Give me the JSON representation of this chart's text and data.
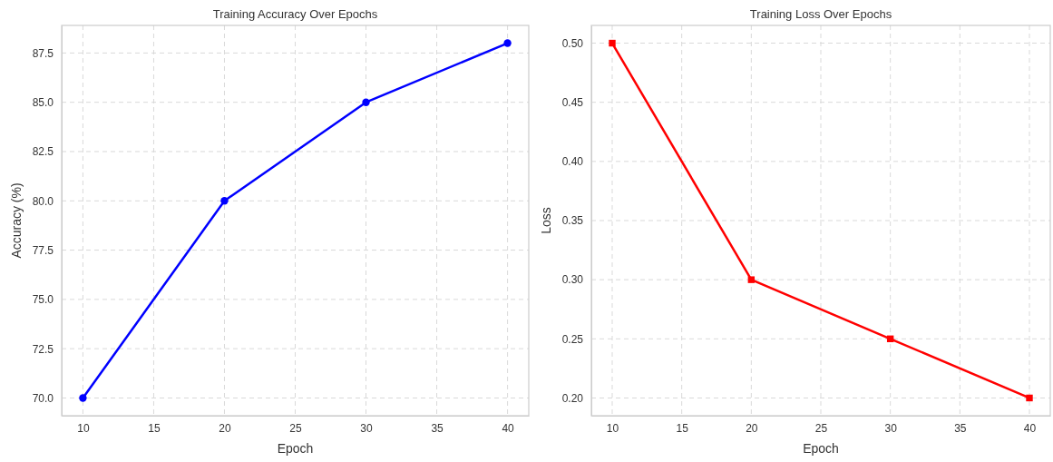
{
  "chart_data": [
    {
      "type": "line",
      "title": "Training Accuracy Over Epochs",
      "xlabel": "Epoch",
      "ylabel": "Accuracy (%)",
      "x": [
        10,
        20,
        30,
        40
      ],
      "series": [
        {
          "color": "#0000ff",
          "values": [
            70,
            80,
            85,
            88
          ]
        }
      ],
      "xlim": [
        8.5,
        41.5
      ],
      "ylim": [
        69.1,
        88.9
      ],
      "xticks": [
        10,
        15,
        20,
        25,
        30,
        35,
        40
      ],
      "yticks": [
        {
          "value": 70,
          "label": "70.0"
        },
        {
          "value": 72.5,
          "label": "72.5"
        },
        {
          "value": 75,
          "label": "75.0"
        },
        {
          "value": 77.5,
          "label": "77.5"
        },
        {
          "value": 80,
          "label": "80.0"
        },
        {
          "value": 82.5,
          "label": "82.5"
        },
        {
          "value": 85,
          "label": "85.0"
        },
        {
          "value": 87.5,
          "label": "87.5"
        }
      ],
      "grid": true,
      "marker": "circle",
      "line_style": "solid"
    },
    {
      "type": "line",
      "title": "Training Loss Over Epochs",
      "xlabel": "Epoch",
      "ylabel": "Loss",
      "x": [
        10,
        20,
        30,
        40
      ],
      "series": [
        {
          "color": "#ff0000",
          "values": [
            0.5,
            0.3,
            0.25,
            0.2
          ]
        }
      ],
      "xlim": [
        8.5,
        41.5
      ],
      "ylim": [
        0.185,
        0.515
      ],
      "xticks": [
        10,
        15,
        20,
        25,
        30,
        35,
        40
      ],
      "yticks": [
        {
          "value": 0.2,
          "label": "0.20"
        },
        {
          "value": 0.25,
          "label": "0.25"
        },
        {
          "value": 0.3,
          "label": "0.30"
        },
        {
          "value": 0.35,
          "label": "0.35"
        },
        {
          "value": 0.4,
          "label": "0.40"
        },
        {
          "value": 0.45,
          "label": "0.45"
        },
        {
          "value": 0.5,
          "label": "0.50"
        }
      ],
      "grid": true,
      "marker": "square",
      "line_style": "solid"
    }
  ]
}
